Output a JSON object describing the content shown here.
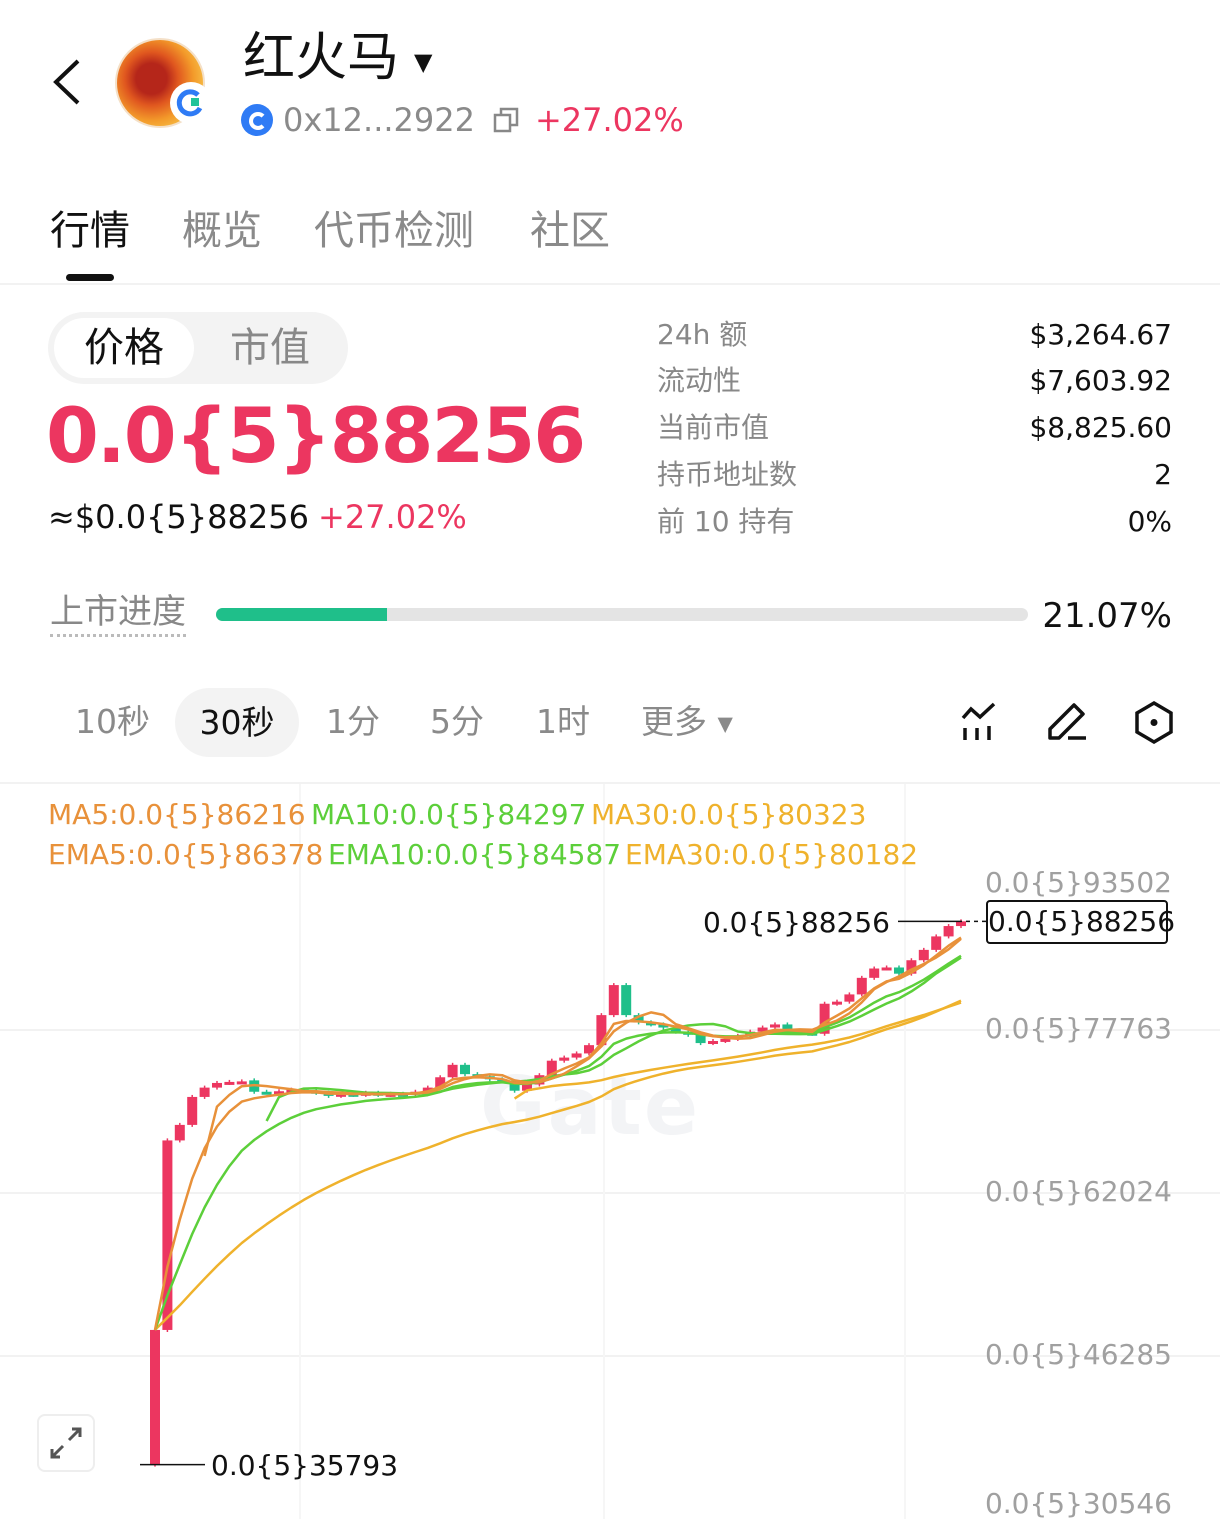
{
  "header": {
    "title": "红火马",
    "address": "0x12...2922",
    "change": "+27.02%",
    "icons": [
      "back-chevron-icon",
      "token-avatar",
      "gate-badge-icon",
      "dropdown-caret-icon",
      "chain-icon",
      "copy-icon"
    ]
  },
  "tabs": [
    {
      "label": "行情",
      "active": true
    },
    {
      "label": "概览",
      "active": false
    },
    {
      "label": "代币检测",
      "active": false
    },
    {
      "label": "社区",
      "active": false
    }
  ],
  "toggle": {
    "price": "价格",
    "market_cap": "市值",
    "selected": "价格"
  },
  "price": {
    "value": "0.0{5}88256",
    "approx": "≈$0.0{5}88256",
    "change": "+27.02%"
  },
  "stats": [
    {
      "label": "24h  额",
      "value": "$3,264.67"
    },
    {
      "label": "流动性",
      "value": "$7,603.92"
    },
    {
      "label": "当前市值",
      "value": "$8,825.60"
    },
    {
      "label": "持币地址数",
      "value": "2"
    },
    {
      "label": "前 10 持有",
      "value": "0%"
    }
  ],
  "listing": {
    "label": "上市进度",
    "percent_text": "21.07%",
    "percent": 21.07
  },
  "timeframes": [
    {
      "label": "10秒"
    },
    {
      "label": "30秒",
      "active": true
    },
    {
      "label": "1分"
    },
    {
      "label": "5分"
    },
    {
      "label": "1时"
    },
    {
      "label": "更多"
    }
  ],
  "tools": [
    "indicator-icon",
    "draw-pencil-icon",
    "settings-hexagon-icon"
  ],
  "colors": {
    "up": "#ec3660",
    "down": "#1fbf8a",
    "ma5": "#e8913a",
    "ma10": "#5ccf3a",
    "ma30": "#efb22c",
    "progress": "#1fbf8a"
  },
  "indicators": {
    "ma5": "MA5:0.0{5}86216",
    "ma10": "MA10:0.0{5}84297",
    "ma30": "MA30:0.0{5}80323",
    "ema5": "EMA5:0.0{5}86378",
    "ema10": "EMA10:0.0{5}84587",
    "ema30": "EMA30:0.0{5}80182"
  },
  "chart_data": {
    "type": "candlestick",
    "price_unit": "0.0{5}xxxxx",
    "y_ticks": [
      "0.0{5}93502",
      "0.0{5}77763",
      "0.0{5}62024",
      "0.0{5}46285",
      "0.0{5}30546"
    ],
    "y_tick_values": [
      93502,
      77763,
      62024,
      46285,
      30546
    ],
    "max_label": "0.0{5}88256",
    "current_label": "0.0{5}88256",
    "min_label": "0.0{5}35793",
    "min_value": 35793,
    "current_value": 88256,
    "watermark": "Gate",
    "candles_oc": [
      [
        35793,
        48800
      ],
      [
        48800,
        67100
      ],
      [
        67100,
        68600
      ],
      [
        68600,
        71300
      ],
      [
        71300,
        72200
      ],
      [
        72200,
        72650
      ],
      [
        72650,
        72750
      ],
      [
        72750,
        72800
      ],
      [
        72900,
        71800
      ],
      [
        71800,
        71750
      ],
      [
        71750,
        71850
      ],
      [
        71850,
        72000
      ],
      [
        72000,
        71900
      ],
      [
        71900,
        71700
      ],
      [
        71700,
        71400
      ],
      [
        71400,
        71600
      ],
      [
        71600,
        71500
      ],
      [
        71500,
        71700
      ],
      [
        71700,
        71500
      ],
      [
        71500,
        71600
      ],
      [
        71600,
        71550
      ],
      [
        71550,
        71800
      ],
      [
        71800,
        72200
      ],
      [
        72200,
        73200
      ],
      [
        73200,
        74400
      ],
      [
        74400,
        73500
      ],
      [
        73500,
        73300
      ],
      [
        73300,
        73000
      ],
      [
        73000,
        72800
      ],
      [
        72800,
        71900
      ],
      [
        71900,
        72500
      ],
      [
        72500,
        73400
      ],
      [
        73400,
        74800
      ],
      [
        74800,
        75100
      ],
      [
        75100,
        75500
      ],
      [
        75500,
        76300
      ],
      [
        76300,
        79200
      ],
      [
        79200,
        82100
      ],
      [
        82100,
        79200
      ],
      [
        79200,
        78500
      ],
      [
        78500,
        78300
      ],
      [
        78300,
        78000
      ],
      [
        78000,
        77600
      ],
      [
        77600,
        77300
      ],
      [
        77300,
        76500
      ],
      [
        76500,
        76700
      ],
      [
        76700,
        76900
      ],
      [
        76900,
        77200
      ],
      [
        77200,
        77600
      ],
      [
        77600,
        78000
      ],
      [
        78000,
        78300
      ],
      [
        78300,
        77700
      ],
      [
        77700,
        77500
      ],
      [
        77500,
        77400
      ],
      [
        77400,
        80300
      ],
      [
        80300,
        80500
      ],
      [
        80500,
        81200
      ],
      [
        81200,
        82800
      ],
      [
        82800,
        83700
      ],
      [
        83700,
        83800
      ],
      [
        83800,
        83200
      ],
      [
        83200,
        84500
      ],
      [
        84500,
        85500
      ],
      [
        85500,
        86800
      ],
      [
        86800,
        87800
      ],
      [
        87800,
        88256
      ]
    ]
  }
}
